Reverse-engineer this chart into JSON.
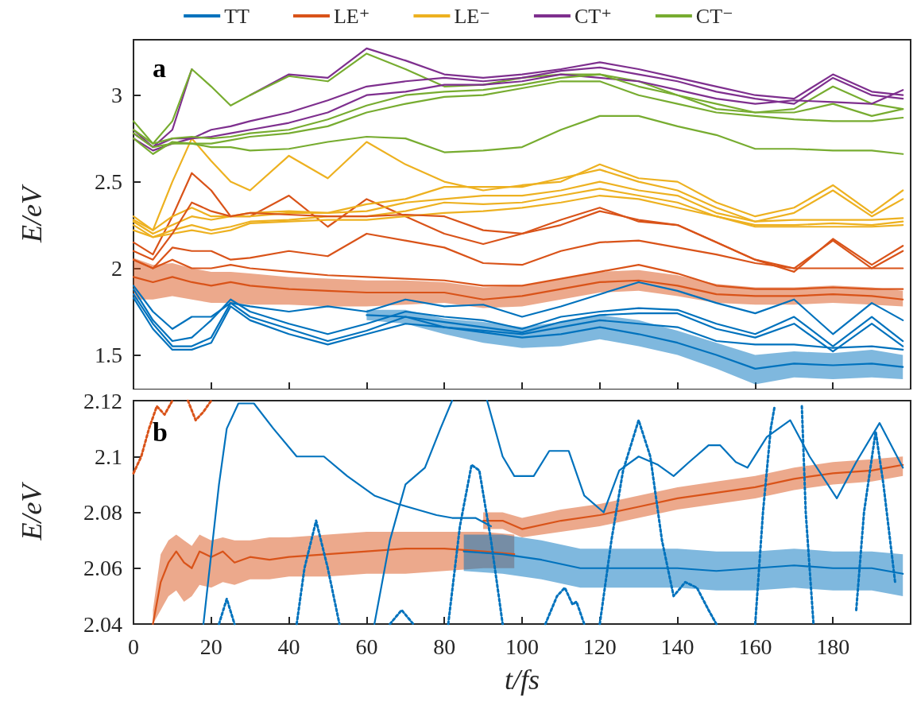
{
  "chart_data": [
    {
      "type": "line",
      "ylabel": "E/eV",
      "legend": "top",
      "tick_labels": "y",
      "annotations": [
        "a"
      ],
      "xlim": [
        0,
        200
      ],
      "xticks": [
        0,
        20,
        40,
        60,
        80,
        100,
        120,
        140,
        160,
        180
      ],
      "ylim": [
        1.3,
        3.32
      ],
      "yticks": [
        1.5,
        2,
        2.5,
        3
      ],
      "x": [
        0,
        5,
        10,
        15,
        20,
        25,
        30,
        40,
        50,
        60,
        70,
        80,
        90,
        100,
        110,
        120,
        130,
        140,
        150,
        160,
        170,
        180,
        190,
        198
      ],
      "series": [
        {
          "name": "TT",
          "color": "#0072bd",
          "values": [
            1.9,
            1.75,
            1.65,
            1.72,
            1.72,
            1.8,
            1.78,
            1.75,
            1.78,
            1.75,
            1.82,
            1.78,
            1.79,
            1.72,
            1.78,
            1.85,
            1.92,
            1.87,
            1.8,
            1.74,
            1.82,
            1.62,
            1.8,
            1.7
          ]
        },
        {
          "name": "LE⁺",
          "color": "#d95319",
          "values": [
            2.15,
            2.08,
            2.3,
            2.55,
            2.45,
            2.3,
            2.3,
            2.42,
            2.24,
            2.4,
            2.3,
            2.2,
            2.14,
            2.2,
            2.28,
            2.35,
            2.27,
            2.25,
            2.15,
            2.05,
            1.98,
            2.17,
            2.02,
            2.13
          ]
        },
        {
          "name": "LE⁻",
          "color": "#edb120",
          "values": [
            2.3,
            2.22,
            2.5,
            2.75,
            2.62,
            2.5,
            2.45,
            2.65,
            2.52,
            2.73,
            2.6,
            2.5,
            2.45,
            2.48,
            2.5,
            2.6,
            2.52,
            2.5,
            2.38,
            2.3,
            2.35,
            2.48,
            2.32,
            2.45
          ]
        },
        {
          "name": "CT⁺",
          "color": "#7e2f8e",
          "values": [
            2.8,
            2.7,
            2.8,
            3.15,
            null,
            null,
            3.0,
            3.12,
            3.1,
            3.27,
            3.2,
            3.12,
            3.1,
            3.12,
            3.15,
            3.19,
            3.15,
            3.1,
            3.05,
            3.0,
            2.98,
            3.12,
            3.02,
            3.0
          ]
        },
        {
          "name": "CT⁻",
          "color": "#77ac30",
          "values": [
            2.85,
            2.72,
            2.85,
            3.15,
            3.05,
            2.94,
            3.0,
            3.11,
            3.08,
            3.24,
            3.15,
            3.05,
            3.06,
            3.1,
            3.12,
            3.12,
            3.08,
            3.0,
            2.95,
            2.9,
            2.92,
            3.05,
            2.95,
            2.92
          ]
        },
        {
          "color": "#7e2f8e",
          "values": [
            2.78,
            2.7,
            2.75,
            2.75,
            2.8,
            2.82,
            2.85,
            2.9,
            2.97,
            3.05,
            3.08,
            3.1,
            3.08,
            3.1,
            3.14,
            3.16,
            3.12,
            3.08,
            3.02,
            2.98,
            2.95,
            3.1,
            3.0,
            2.98
          ]
        },
        {
          "color": "#7e2f8e",
          "values": [
            2.75,
            2.68,
            2.72,
            2.75,
            2.76,
            2.78,
            2.8,
            2.84,
            2.9,
            3.0,
            3.02,
            3.06,
            3.06,
            3.08,
            3.12,
            3.1,
            3.08,
            3.03,
            2.98,
            2.95,
            2.97,
            2.96,
            2.95,
            3.03
          ]
        },
        {
          "color": "#77ac30",
          "values": [
            2.8,
            2.72,
            2.75,
            2.76,
            2.75,
            2.76,
            2.78,
            2.8,
            2.86,
            2.94,
            3.0,
            3.02,
            3.03,
            3.06,
            3.1,
            3.12,
            3.05,
            3.0,
            2.92,
            2.9,
            2.9,
            2.95,
            2.88,
            2.92
          ]
        },
        {
          "color": "#77ac30",
          "values": [
            2.75,
            2.66,
            2.73,
            2.72,
            2.72,
            2.74,
            2.76,
            2.78,
            2.82,
            2.9,
            2.95,
            2.99,
            3.0,
            3.04,
            3.08,
            3.08,
            3.0,
            2.95,
            2.9,
            2.88,
            2.86,
            2.85,
            2.85,
            2.87
          ]
        },
        {
          "color": "#77ac30",
          "values": [
            2.78,
            2.7,
            2.72,
            2.72,
            2.7,
            2.7,
            2.68,
            2.69,
            2.73,
            2.76,
            2.75,
            2.67,
            2.68,
            2.7,
            2.8,
            2.88,
            2.88,
            2.82,
            2.77,
            2.69,
            2.69,
            2.68,
            2.68,
            2.66
          ]
        },
        {
          "color": "#edb120",
          "values": [
            2.28,
            2.22,
            2.3,
            2.35,
            2.3,
            2.3,
            2.32,
            2.33,
            2.32,
            2.37,
            2.4,
            2.47,
            2.47,
            2.47,
            2.52,
            2.57,
            2.5,
            2.45,
            2.35,
            2.27,
            2.32,
            2.45,
            2.3,
            2.4
          ]
        },
        {
          "color": "#edb120",
          "values": [
            2.27,
            2.2,
            2.25,
            2.3,
            2.28,
            2.3,
            2.3,
            2.32,
            2.32,
            2.33,
            2.38,
            2.4,
            2.42,
            2.42,
            2.45,
            2.5,
            2.45,
            2.42,
            2.32,
            2.27,
            2.28,
            2.28,
            2.28,
            2.29
          ]
        },
        {
          "color": "#edb120",
          "values": [
            2.25,
            2.18,
            2.22,
            2.25,
            2.22,
            2.24,
            2.27,
            2.28,
            2.3,
            2.3,
            2.33,
            2.38,
            2.37,
            2.38,
            2.42,
            2.46,
            2.42,
            2.38,
            2.3,
            2.25,
            2.25,
            2.26,
            2.25,
            2.27
          ]
        },
        {
          "color": "#edb120",
          "values": [
            2.22,
            2.18,
            2.2,
            2.22,
            2.2,
            2.22,
            2.26,
            2.27,
            2.28,
            2.28,
            2.3,
            2.32,
            2.33,
            2.35,
            2.38,
            2.42,
            2.4,
            2.35,
            2.3,
            2.24,
            2.24,
            2.24,
            2.24,
            2.25
          ]
        },
        {
          "color": "#d95319",
          "values": [
            2.1,
            2.05,
            2.2,
            2.38,
            2.33,
            2.3,
            2.32,
            2.31,
            2.3,
            2.3,
            2.31,
            2.3,
            2.22,
            2.2,
            2.25,
            2.33,
            2.28,
            2.25,
            2.15,
            2.05,
            2.0,
            2.16,
            2.0,
            2.1
          ]
        },
        {
          "color": "#d95319",
          "values": [
            2.05,
            2.0,
            2.12,
            2.1,
            2.1,
            2.05,
            2.06,
            2.1,
            2.07,
            2.2,
            2.16,
            2.12,
            2.03,
            2.02,
            2.1,
            2.15,
            2.16,
            2.12,
            2.08,
            2.03,
            2.0,
            2.0,
            2.0,
            2.0
          ]
        },
        {
          "color": "#d95319",
          "values": [
            2.05,
            2.0,
            2.05,
            2.0,
            2.0,
            2.02,
            2.0,
            1.98,
            1.96,
            1.95,
            1.94,
            1.93,
            1.9,
            1.9,
            1.94,
            1.98,
            2.02,
            1.97,
            1.9,
            1.88,
            1.88,
            1.89,
            1.88,
            1.88
          ]
        },
        {
          "color": "#d95319",
          "values": [
            1.95,
            1.92,
            1.95,
            1.92,
            1.9,
            1.92,
            1.9,
            1.88,
            1.87,
            1.86,
            1.86,
            1.86,
            1.82,
            1.84,
            1.88,
            1.92,
            1.93,
            1.9,
            1.85,
            1.84,
            1.84,
            1.85,
            1.84,
            1.82
          ],
          "lower": [
            1.82,
            1.82,
            1.84,
            1.82,
            1.8,
            1.8,
            1.79,
            1.79,
            1.78,
            1.78,
            1.79,
            1.8,
            1.77,
            1.78,
            1.82,
            1.86,
            1.87,
            1.84,
            1.8,
            1.79,
            1.79,
            1.8,
            1.79,
            1.78
          ],
          "upper": [
            2.06,
            2.02,
            2.03,
            2.0,
            1.98,
            1.98,
            1.97,
            1.95,
            1.94,
            1.93,
            1.93,
            1.92,
            1.89,
            1.9,
            1.94,
            1.98,
            1.99,
            1.96,
            1.91,
            1.89,
            1.89,
            1.9,
            1.89,
            1.87
          ]
        },
        {
          "color": "#0072bd",
          "values": [
            1.88,
            1.7,
            1.58,
            1.6,
            1.7,
            1.82,
            1.75,
            1.68,
            1.62,
            1.68,
            1.75,
            1.72,
            1.7,
            1.65,
            1.72,
            1.75,
            1.77,
            1.76,
            1.68,
            1.62,
            1.72,
            1.55,
            1.72,
            1.58
          ]
        },
        {
          "color": "#0072bd",
          "values": [
            1.85,
            1.68,
            1.55,
            1.55,
            1.6,
            1.8,
            1.72,
            1.65,
            1.58,
            1.64,
            1.72,
            1.69,
            1.66,
            1.63,
            1.69,
            1.73,
            1.74,
            1.74,
            1.65,
            1.6,
            1.68,
            1.52,
            1.68,
            1.55
          ]
        },
        {
          "color": "#0072bd",
          "values": [
            1.83,
            1.65,
            1.53,
            1.53,
            1.57,
            1.78,
            1.7,
            1.62,
            1.56,
            1.62,
            1.68,
            1.66,
            1.64,
            1.62,
            1.66,
            1.7,
            1.68,
            1.66,
            1.58,
            1.56,
            1.56,
            1.54,
            1.55,
            1.53
          ]
        },
        {
          "color": "#0072bd",
          "x": [
            60,
            70,
            80,
            90,
            100,
            110,
            120,
            130,
            140,
            150,
            160,
            170,
            180,
            190,
            198
          ],
          "values": [
            1.73,
            1.72,
            1.66,
            1.63,
            1.6,
            1.62,
            1.66,
            1.62,
            1.57,
            1.5,
            1.42,
            1.45,
            1.44,
            1.45,
            1.43
          ],
          "lower": [
            1.7,
            1.68,
            1.62,
            1.57,
            1.54,
            1.55,
            1.59,
            1.55,
            1.5,
            1.42,
            1.33,
            1.37,
            1.36,
            1.37,
            1.36
          ],
          "upper": [
            1.76,
            1.76,
            1.71,
            1.69,
            1.66,
            1.69,
            1.73,
            1.7,
            1.64,
            1.57,
            1.5,
            1.52,
            1.51,
            1.53,
            1.5
          ]
        }
      ]
    },
    {
      "type": "line",
      "ylabel": "E/eV",
      "xlabel": "t/fs",
      "annotations": [
        "b"
      ],
      "xlim": [
        0,
        200
      ],
      "xticks": [
        0,
        20,
        40,
        60,
        80,
        100,
        120,
        140,
        160,
        180
      ],
      "ylim": [
        2.04,
        2.12
      ],
      "yticks": [
        2.04,
        2.06,
        2.08,
        2.1,
        2.12
      ],
      "series": [
        {
          "color": "#d95319",
          "x": [
            5,
            7,
            9,
            11,
            13,
            15,
            17,
            20,
            23,
            26,
            30,
            35,
            40,
            50,
            60,
            70,
            80,
            90,
            98
          ],
          "values": [
            2.04,
            2.055,
            2.062,
            2.066,
            2.062,
            2.06,
            2.066,
            2.064,
            2.066,
            2.062,
            2.064,
            2.063,
            2.064,
            2.065,
            2.066,
            2.067,
            2.067,
            2.066,
            2.065
          ],
          "lower": [
            2.04,
            2.045,
            2.05,
            2.052,
            2.048,
            2.05,
            2.054,
            2.053,
            2.055,
            2.054,
            2.056,
            2.056,
            2.057,
            2.057,
            2.058,
            2.058,
            2.059,
            2.06,
            2.06
          ],
          "upper": [
            2.045,
            2.065,
            2.07,
            2.072,
            2.07,
            2.068,
            2.072,
            2.07,
            2.071,
            2.07,
            2.07,
            2.071,
            2.071,
            2.072,
            2.073,
            2.073,
            2.073,
            2.073,
            2.072
          ]
        },
        {
          "color": "#0072bd",
          "x": [
            85,
            95,
            105,
            115,
            120,
            130,
            140,
            150,
            160,
            170,
            180,
            190,
            198
          ],
          "values": [
            2.066,
            2.065,
            2.063,
            2.06,
            2.06,
            2.06,
            2.06,
            2.059,
            2.06,
            2.061,
            2.06,
            2.06,
            2.058
          ],
          "lower": [
            2.059,
            2.058,
            2.056,
            2.053,
            2.053,
            2.053,
            2.053,
            2.052,
            2.052,
            2.053,
            2.052,
            2.052,
            2.05
          ],
          "upper": [
            2.072,
            2.072,
            2.07,
            2.067,
            2.067,
            2.067,
            2.067,
            2.066,
            2.066,
            2.067,
            2.066,
            2.066,
            2.065
          ]
        },
        {
          "color": "#d95319",
          "x": [
            90,
            95,
            100,
            110,
            120,
            130,
            140,
            150,
            160,
            170,
            180,
            190,
            198
          ],
          "values": [
            2.077,
            2.077,
            2.074,
            2.077,
            2.079,
            2.082,
            2.085,
            2.087,
            2.089,
            2.092,
            2.094,
            2.095,
            2.097
          ],
          "lower": [
            2.074,
            2.074,
            2.071,
            2.073,
            2.075,
            2.078,
            2.081,
            2.083,
            2.085,
            2.088,
            2.09,
            2.091,
            2.093
          ],
          "upper": [
            2.08,
            2.08,
            2.078,
            2.081,
            2.083,
            2.086,
            2.089,
            2.091,
            2.093,
            2.096,
            2.098,
            2.099,
            2.1
          ]
        },
        {
          "color": "#0072bd",
          "x": [
            18,
            20,
            22,
            24,
            27,
            31,
            36,
            42,
            49,
            55,
            62,
            68,
            73,
            78,
            82,
            88,
            92
          ],
          "values": [
            2.04,
            2.065,
            2.09,
            2.11,
            2.119,
            2.119,
            2.11,
            2.1,
            2.1,
            2.093,
            2.086,
            2.083,
            2.081,
            2.079,
            2.078,
            2.078,
            2.075
          ]
        },
        {
          "color": "#0072bd",
          "x": [
            62,
            66,
            70,
            75,
            79,
            82,
            86,
            91,
            95,
            98,
            103,
            107,
            112,
            116,
            121,
            125,
            130,
            135,
            139,
            143,
            148,
            151,
            155,
            158,
            163,
            169,
            174,
            181,
            186,
            192,
            198
          ],
          "values": [
            2.04,
            2.07,
            2.09,
            2.096,
            2.11,
            2.12,
            null,
            2.12,
            2.1,
            2.093,
            2.093,
            2.102,
            2.102,
            2.086,
            2.08,
            2.095,
            2.1,
            2.097,
            2.093,
            2.098,
            2.104,
            2.104,
            2.098,
            2.096,
            2.107,
            2.113,
            2.1,
            2.085,
            2.098,
            2.112,
            2.096
          ]
        },
        {
          "color": "#0072bd",
          "line_style": "dotted",
          "x": [
            22,
            24,
            26,
            34,
            42,
            44,
            47,
            50,
            53,
            60,
            66,
            69,
            72,
            77,
            81,
            84,
            87,
            89,
            92,
            95,
            100,
            106,
            109,
            111,
            113,
            114,
            116,
            118,
            120,
            123,
            126,
            130,
            133,
            136,
            139,
            142,
            145,
            148,
            150,
            155,
            160,
            162,
            164,
            165,
            168,
            172,
            173,
            175,
            180,
            186,
            188,
            191,
            193,
            196
          ],
          "values": [
            2.04,
            2.049,
            2.04,
            null,
            2.04,
            2.06,
            2.077,
            2.06,
            2.04,
            null,
            2.04,
            2.045,
            2.04,
            null,
            2.04,
            2.075,
            2.097,
            2.095,
            2.07,
            2.04,
            null,
            2.04,
            2.05,
            2.053,
            2.047,
            2.048,
            2.04,
            null,
            2.04,
            2.07,
            2.095,
            2.113,
            2.1,
            2.07,
            2.05,
            2.055,
            2.053,
            2.045,
            2.04,
            null,
            2.04,
            2.08,
            2.11,
            2.118,
            null,
            2.118,
            2.08,
            2.04,
            null,
            2.045,
            2.08,
            2.109,
            2.09,
            2.055
          ]
        },
        {
          "color": "#d95319",
          "line_style": "dotted",
          "x": [
            0,
            2,
            4,
            6,
            8,
            10,
            12,
            14,
            16,
            18,
            20
          ],
          "values": [
            2.094,
            2.1,
            2.11,
            2.118,
            2.115,
            2.12,
            null,
            2.12,
            2.113,
            2.116,
            2.12
          ]
        }
      ]
    }
  ]
}
